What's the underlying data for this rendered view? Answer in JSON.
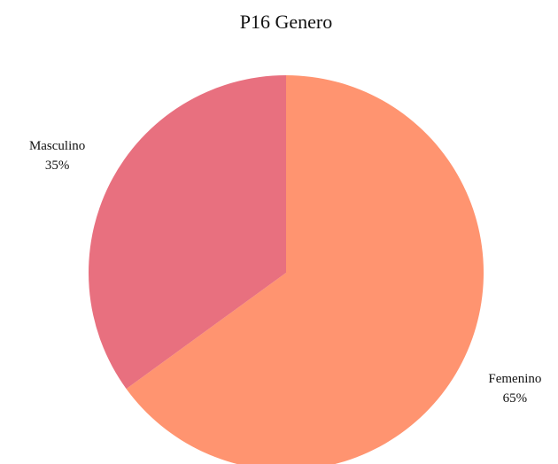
{
  "chart_data": {
    "type": "pie",
    "title": "P16 Genero",
    "categories": [
      "Femenino",
      "Masculino"
    ],
    "values": [
      65,
      35
    ],
    "value_labels": [
      "65%",
      "35%"
    ],
    "colors": [
      "#ff9470",
      "#e8707f"
    ]
  }
}
